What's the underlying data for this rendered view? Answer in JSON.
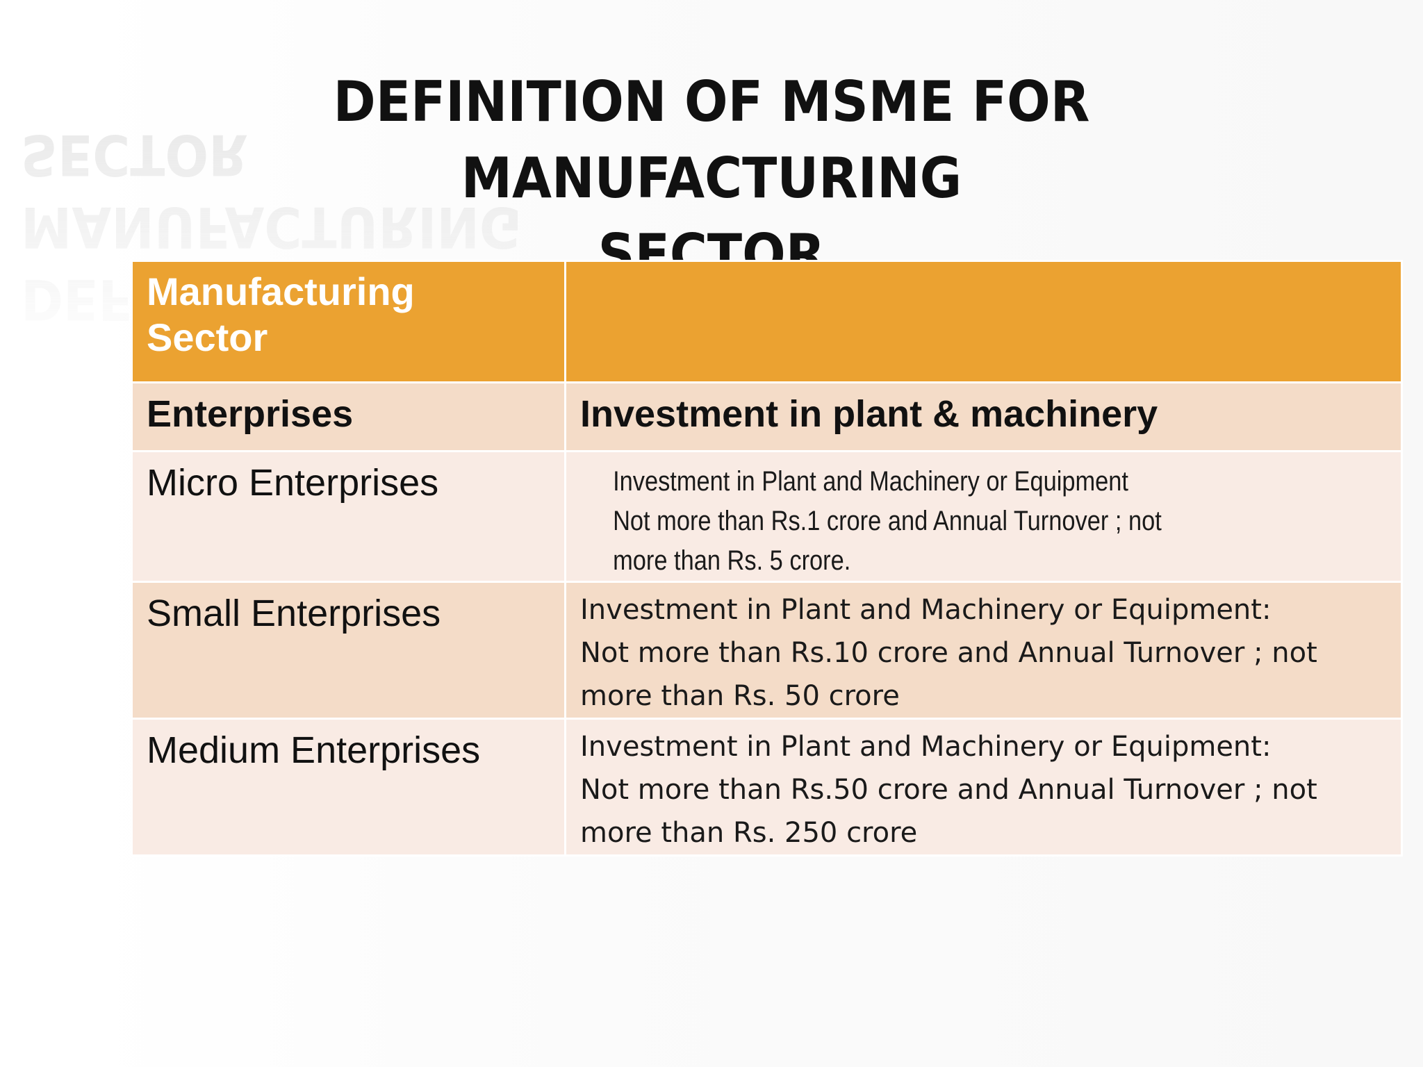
{
  "slide": {
    "title": "DEFINITION OF MSME FOR MANUFACTURING\nSECTOR"
  },
  "table": {
    "header": {
      "col1": "Manufacturing\nSector",
      "col2": ""
    },
    "subheader": {
      "col1": "Enterprises",
      "col2": "Investment in plant & machinery"
    },
    "rows": [
      {
        "name": "Micro Enterprises",
        "criteria_lines": [
          "Investment in Plant and Machinery or Equipment",
          "Not more than Rs.1 crore and Annual Turnover ; not",
          "more than Rs. 5 crore."
        ]
      },
      {
        "name": "Small Enterprises",
        "criteria_lines": [
          "Investment in Plant and Machinery or Equipment:",
          "Not more than Rs.10 crore and Annual Turnover ; not",
          "more than Rs. 50 crore"
        ]
      },
      {
        "name": "Medium Enterprises",
        "criteria_lines": [
          "Investment in Plant and Machinery or Equipment:",
          "Not more than Rs.50 crore and Annual Turnover ; not",
          "more than Rs. 250 crore"
        ]
      }
    ]
  },
  "colors": {
    "header_bg": "#eba231",
    "row_dark": "#f4dcc8",
    "row_light": "#f9ebe4"
  }
}
